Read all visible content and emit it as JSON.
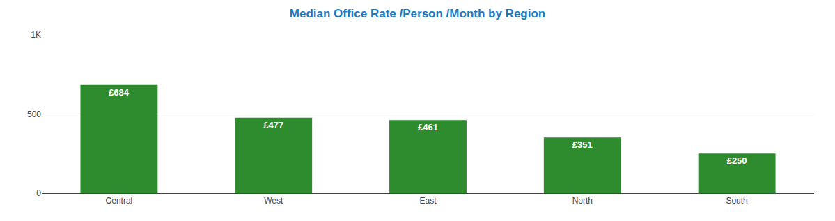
{
  "chart_data": {
    "type": "bar",
    "title": "Median Office Rate /Person /Month by Region",
    "categories": [
      "Central",
      "West",
      "East",
      "North",
      "South"
    ],
    "values": [
      684,
      477,
      461,
      351,
      250
    ],
    "value_labels": [
      "£684",
      "£477",
      "£461",
      "£351",
      "£250"
    ],
    "data_labels": true,
    "color": "#2e8b2e",
    "ylim": [
      0,
      1000
    ],
    "yticks": [
      0,
      500,
      {
        "value": 1000,
        "label": "1K"
      }
    ],
    "grid": true
  }
}
